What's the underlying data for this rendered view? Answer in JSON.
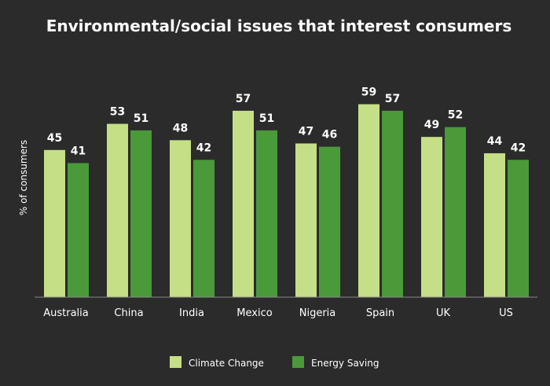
{
  "chart_data": {
    "type": "bar",
    "title": "Environmental/social issues that interest consumers",
    "xlabel": "",
    "ylabel": "% of consumers",
    "ylim": [
      0,
      60
    ],
    "grid": false,
    "legend_position": "bottom-center",
    "categories": [
      "Australia",
      "China",
      "India",
      "Mexico",
      "Nigeria",
      "Spain",
      "UK",
      "US"
    ],
    "series": [
      {
        "name": "Climate Change",
        "color": "#c5df86",
        "values": [
          45,
          53,
          48,
          57,
          47,
          59,
          49,
          44
        ]
      },
      {
        "name": "Energy Saving",
        "color": "#4a9a3a",
        "values": [
          41,
          51,
          42,
          51,
          46,
          57,
          52,
          42
        ]
      }
    ]
  }
}
